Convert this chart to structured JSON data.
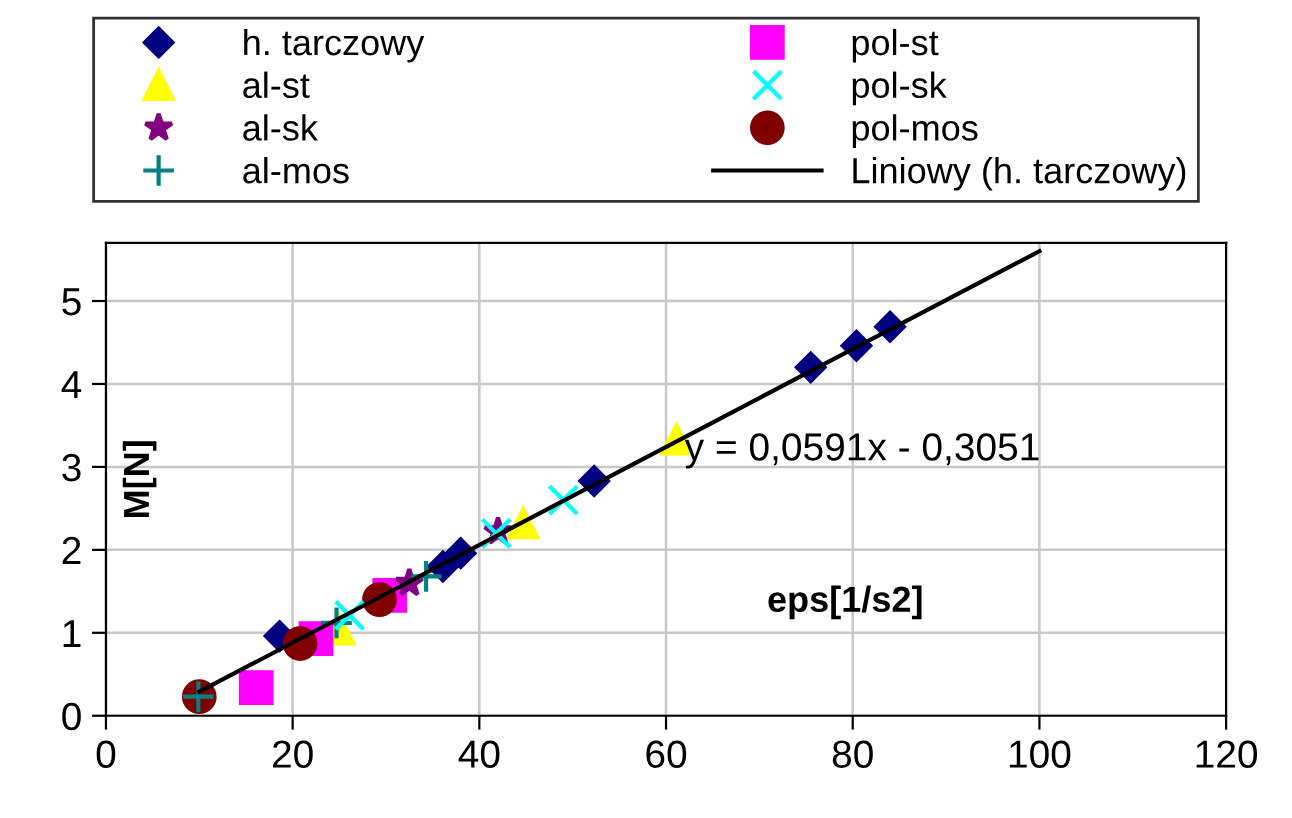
{
  "chart_data": {
    "type": "scatter",
    "xlabel": "eps[1/s2]",
    "ylabel": "M[N]",
    "xlim": [
      0,
      120
    ],
    "xticks": [
      0,
      20,
      40,
      60,
      80,
      100,
      120
    ],
    "ylim": [
      0,
      5.7
    ],
    "yticks": [
      0,
      1,
      2,
      3,
      4,
      5
    ],
    "grid": true,
    "legend": "top",
    "annotations": [
      {
        "text": "y = 0,0591x - 0,3051",
        "x": 62,
        "y": 3.2
      }
    ],
    "series": [
      {
        "name": "h. tarczowy",
        "color": "#000080",
        "marker": "diamond",
        "x": [
          18.6,
          36.1,
          38.0,
          52.3,
          75.5,
          80.4,
          84.0
        ],
        "values": [
          0.96,
          1.8,
          1.96,
          2.83,
          4.2,
          4.46,
          4.69
        ]
      },
      {
        "name": "al-st",
        "color": "#ffff00",
        "marker": "triangle",
        "x": [
          25.0,
          44.7,
          61.1
        ],
        "values": [
          1.04,
          2.32,
          3.33
        ]
      },
      {
        "name": "al-sk",
        "color": "#800080",
        "marker": "star",
        "x": [
          32.5,
          42.0
        ],
        "values": [
          1.6,
          2.22
        ]
      },
      {
        "name": "al-mos",
        "color": "#008080",
        "marker": "cross",
        "x": [
          9.9,
          24.7,
          34.3
        ],
        "values": [
          0.23,
          1.12,
          1.68
        ]
      },
      {
        "name": "pol-st",
        "color": "#ff00ff",
        "marker": "square",
        "x": [
          16.1,
          22.5,
          30.4
        ],
        "values": [
          0.34,
          0.93,
          1.45
        ]
      },
      {
        "name": "pol-sk",
        "color": "#00ffff",
        "marker": "x",
        "x": [
          26.1,
          41.8,
          49.0
        ],
        "values": [
          1.21,
          2.2,
          2.6
        ]
      },
      {
        "name": "pol-mos",
        "color": "#800000",
        "marker": "circle",
        "x": [
          10.0,
          20.8,
          29.3
        ],
        "values": [
          0.23,
          0.87,
          1.4
        ]
      },
      {
        "name": "Liniowy (h. tarczowy)",
        "type": "line",
        "color": "#000000",
        "marker": "none",
        "line_style": "solid",
        "x": [
          10,
          100
        ],
        "values": [
          0.29,
          5.6
        ]
      }
    ]
  }
}
